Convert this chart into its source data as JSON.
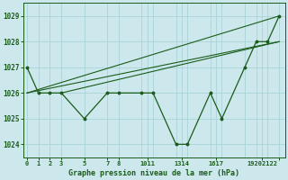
{
  "title": "Graphe pression niveau de la mer (hPa)",
  "background_color": "#cce8ec",
  "grid_color": "#aad4d8",
  "line_color": "#1a5c1a",
  "ylim": [
    1023.5,
    1029.5
  ],
  "yticks": [
    1024,
    1025,
    1026,
    1027,
    1028,
    1029
  ],
  "xlim": [
    -0.3,
    22.5
  ],
  "data_x": [
    0,
    1,
    2,
    3,
    5,
    7,
    8,
    10,
    11,
    13,
    14,
    16,
    17,
    19,
    20,
    21,
    22
  ],
  "data_y": [
    1027,
    1026,
    1026,
    1026,
    1025,
    1026,
    1026,
    1026,
    1026,
    1024,
    1024,
    1026,
    1025,
    1027,
    1028,
    1028,
    1029
  ],
  "fan_lines": [
    {
      "x": [
        0,
        22
      ],
      "y": [
        1026,
        1029
      ]
    },
    {
      "x": [
        0,
        22
      ],
      "y": [
        1026,
        1028
      ]
    },
    {
      "x": [
        3,
        22
      ],
      "y": [
        1026,
        1028
      ]
    }
  ],
  "xtick_positions": [
    0,
    1,
    2,
    3,
    5,
    7,
    8,
    10.5,
    13.5,
    16.5,
    20.5,
    22
  ],
  "xtick_labels": [
    "0",
    "1",
    "2",
    "3",
    "5",
    "7",
    "8",
    "1011",
    "1314",
    "1617",
    "19202122",
    ""
  ],
  "ylabel_fontsize": 6,
  "xlabel_fontsize": 6,
  "title_fontsize": 6
}
